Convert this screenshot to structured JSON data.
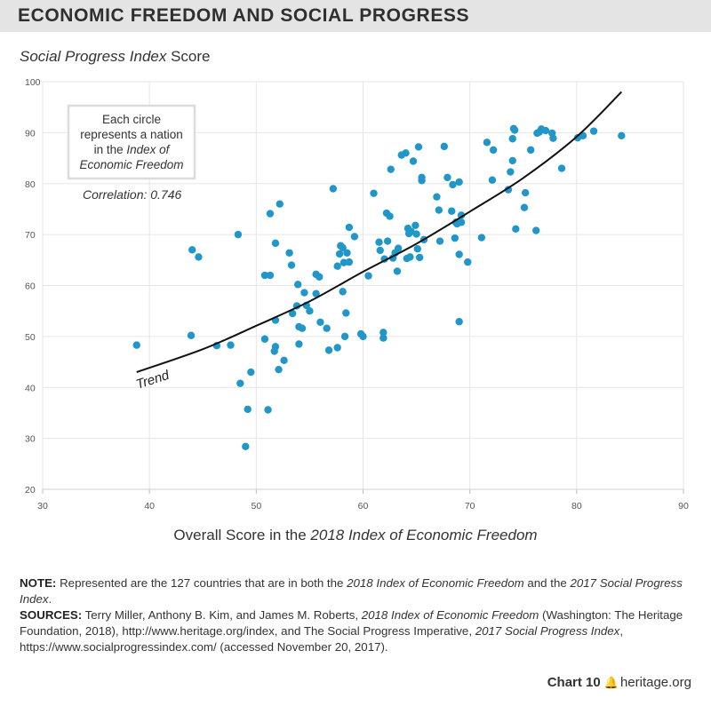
{
  "header": {
    "title": "ECONOMIC FREEDOM AND SOCIAL PROGRESS"
  },
  "labels": {
    "y_italic": "Social Progress Index",
    "y_rest": " Score",
    "x_prefix": "Overall Score in the ",
    "x_italic": "2018 Index of Economic Freedom"
  },
  "callout": {
    "line1": "Each circle",
    "line2": "represents a nation",
    "line3_prefix": "in the ",
    "line3_italic": "Index of",
    "line4": "Economic Freedom",
    "correlation": "Correlation: 0.746",
    "trend": "Trend"
  },
  "note": {
    "label": "NOTE:",
    "t1": " Represented are the 127 countries that are in both the ",
    "i1": "2018 Index of Economic Freedom",
    "t2": " and the ",
    "i2": "2017 Social Progress Index",
    "t3": "."
  },
  "sources": {
    "label": "SOURCES:",
    "t1": " Terry Miller, Anthony B. Kim, and James M. Roberts, ",
    "i1": "2018 Index of Economic Freedom",
    "t2": " (Washington: The Heritage Foundation, 2018), http://www.heritage.org/index, and The Social Progress Imperative, ",
    "i2": "2017 Social Progress Index",
    "t3": ", https://www.socialprogressindex.com/ (accessed November 20, 2017)."
  },
  "footer": {
    "chart_num": "Chart 10",
    "site": "heritage.org",
    "bell_icon": "bell-icon"
  },
  "colors": {
    "dot": "#2196c8",
    "trend": "#111111",
    "grid": "#e6e6e6",
    "title_bg": "#e4e4e4"
  },
  "chart_data": {
    "type": "scatter",
    "title": "ECONOMIC FREEDOM AND SOCIAL PROGRESS",
    "xlabel": "Overall Score in the 2018 Index of Economic Freedom",
    "ylabel": "Social Progress Index Score",
    "xlim": [
      30,
      90
    ],
    "ylim": [
      20,
      100
    ],
    "xticks": [
      30,
      40,
      50,
      60,
      70,
      80,
      90
    ],
    "yticks": [
      20,
      30,
      40,
      50,
      60,
      70,
      80,
      90,
      100
    ],
    "grid": true,
    "correlation": 0.746,
    "trend": {
      "label": "Trend",
      "x": [
        38.8,
        45,
        50,
        55,
        60,
        65,
        70,
        75,
        80,
        84.2
      ],
      "y": [
        43,
        47.5,
        52.1,
        56.9,
        62.7,
        68.2,
        74.5,
        81.1,
        89.2,
        98
      ]
    },
    "points": [
      [
        38.8,
        48.3
      ],
      [
        43.9,
        50.2
      ],
      [
        44.0,
        67.0
      ],
      [
        44.6,
        65.6
      ],
      [
        46.3,
        48.2
      ],
      [
        47.6,
        48.3
      ],
      [
        48.3,
        70.0
      ],
      [
        48.5,
        40.8
      ],
      [
        49.0,
        28.4
      ],
      [
        49.2,
        35.7
      ],
      [
        49.5,
        43.0
      ],
      [
        50.8,
        49.5
      ],
      [
        50.8,
        62.0
      ],
      [
        51.1,
        35.6
      ],
      [
        51.3,
        62.0
      ],
      [
        51.3,
        74.1
      ],
      [
        51.7,
        47.1
      ],
      [
        51.8,
        48.0
      ],
      [
        51.8,
        68.3
      ],
      [
        51.8,
        53.2
      ],
      [
        52.1,
        43.5
      ],
      [
        52.2,
        76.0
      ],
      [
        52.6,
        45.3
      ],
      [
        53.1,
        66.4
      ],
      [
        53.3,
        64.0
      ],
      [
        53.4,
        54.5
      ],
      [
        53.8,
        56.0
      ],
      [
        53.9,
        60.2
      ],
      [
        54.0,
        51.9
      ],
      [
        54.0,
        48.5
      ],
      [
        54.3,
        51.6
      ],
      [
        54.5,
        58.6
      ],
      [
        54.7,
        56.1
      ],
      [
        55.0,
        55.0
      ],
      [
        55.6,
        58.4
      ],
      [
        55.6,
        62.2
      ],
      [
        55.9,
        61.7
      ],
      [
        56.0,
        52.8
      ],
      [
        56.6,
        51.6
      ],
      [
        56.8,
        47.3
      ],
      [
        57.2,
        79.0
      ],
      [
        57.6,
        47.8
      ],
      [
        57.6,
        63.8
      ],
      [
        57.8,
        66.2
      ],
      [
        57.9,
        67.8
      ],
      [
        58.1,
        67.4
      ],
      [
        58.1,
        58.8
      ],
      [
        58.2,
        64.5
      ],
      [
        58.3,
        50.0
      ],
      [
        58.4,
        54.6
      ],
      [
        58.5,
        66.4
      ],
      [
        58.7,
        71.4
      ],
      [
        58.7,
        64.6
      ],
      [
        59.2,
        69.6
      ],
      [
        59.8,
        50.5
      ],
      [
        60.0,
        50.0
      ],
      [
        60.5,
        61.9
      ],
      [
        61.0,
        78.1
      ],
      [
        61.5,
        68.5
      ],
      [
        61.6,
        66.9
      ],
      [
        61.9,
        50.8
      ],
      [
        61.9,
        49.7
      ],
      [
        62.0,
        65.2
      ],
      [
        62.2,
        74.2
      ],
      [
        62.3,
        68.7
      ],
      [
        62.5,
        73.6
      ],
      [
        62.6,
        82.8
      ],
      [
        62.8,
        65.4
      ],
      [
        63.0,
        66.4
      ],
      [
        63.2,
        62.8
      ],
      [
        63.3,
        67.3
      ],
      [
        63.6,
        85.6
      ],
      [
        64.0,
        86.0
      ],
      [
        64.1,
        65.3
      ],
      [
        64.2,
        71.2
      ],
      [
        64.3,
        70.2
      ],
      [
        64.4,
        65.6
      ],
      [
        64.5,
        70.6
      ],
      [
        64.7,
        84.4
      ],
      [
        64.9,
        71.8
      ],
      [
        65.0,
        70.1
      ],
      [
        65.1,
        67.2
      ],
      [
        65.2,
        87.2
      ],
      [
        65.3,
        65.5
      ],
      [
        65.5,
        80.6
      ],
      [
        65.5,
        81.2
      ],
      [
        65.7,
        69.0
      ],
      [
        66.9,
        77.4
      ],
      [
        67.1,
        74.8
      ],
      [
        67.2,
        68.7
      ],
      [
        67.6,
        87.3
      ],
      [
        67.9,
        81.2
      ],
      [
        68.3,
        74.6
      ],
      [
        68.4,
        79.8
      ],
      [
        68.6,
        69.3
      ],
      [
        68.7,
        72.4
      ],
      [
        68.8,
        72.1
      ],
      [
        69.0,
        80.3
      ],
      [
        69.0,
        66.1
      ],
      [
        69.0,
        52.9
      ],
      [
        69.2,
        73.8
      ],
      [
        69.2,
        72.4
      ],
      [
        69.8,
        64.6
      ],
      [
        71.1,
        69.4
      ],
      [
        71.6,
        88.1
      ],
      [
        72.1,
        80.7
      ],
      [
        72.2,
        86.6
      ],
      [
        73.6,
        78.8
      ],
      [
        73.8,
        82.3
      ],
      [
        74.0,
        88.8
      ],
      [
        74.0,
        84.5
      ],
      [
        74.1,
        90.8
      ],
      [
        74.2,
        90.5
      ],
      [
        74.3,
        71.1
      ],
      [
        75.1,
        75.3
      ],
      [
        75.2,
        78.2
      ],
      [
        75.7,
        86.6
      ],
      [
        76.2,
        70.8
      ],
      [
        76.3,
        89.9
      ],
      [
        76.5,
        90.1
      ],
      [
        76.7,
        90.7
      ],
      [
        77.1,
        90.4
      ],
      [
        77.7,
        89.9
      ],
      [
        77.8,
        88.9
      ],
      [
        78.6,
        83.0
      ],
      [
        80.1,
        89.0
      ],
      [
        80.6,
        89.4
      ],
      [
        81.6,
        90.3
      ],
      [
        84.2,
        89.4
      ]
    ]
  }
}
